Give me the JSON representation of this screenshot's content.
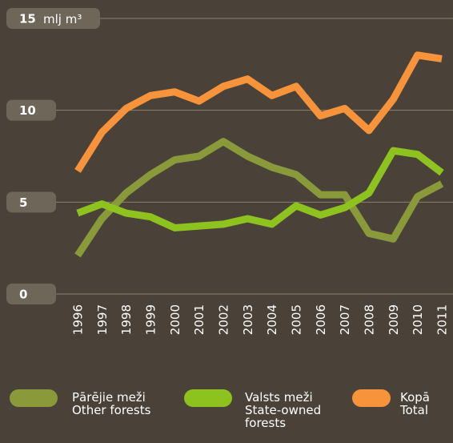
{
  "chart_data": {
    "type": "line",
    "y_unit": "mlj m³",
    "x": [
      "1996",
      "1997",
      "1998",
      "1999",
      "2000",
      "2001",
      "2002",
      "2003",
      "2004",
      "2005",
      "2006",
      "2007",
      "2008",
      "2009",
      "2010",
      "2011"
    ],
    "ylim": [
      0,
      15
    ],
    "yticks": [
      0,
      5,
      10,
      15
    ],
    "grid": true,
    "series": [
      {
        "name": "Pārējie meži\nOther forests",
        "color": "#8a9a3a",
        "values": [
          2.1,
          4.1,
          5.5,
          6.5,
          7.3,
          7.5,
          8.3,
          7.5,
          6.9,
          6.5,
          5.4,
          5.4,
          3.3,
          3.0,
          5.3,
          6.0
        ]
      },
      {
        "name": "Valsts meži\nState-owned\nforests",
        "color": "#8dc21f",
        "values": [
          4.4,
          4.9,
          4.4,
          4.2,
          3.6,
          3.7,
          3.8,
          4.1,
          3.8,
          4.8,
          4.3,
          4.7,
          5.5,
          7.8,
          7.6,
          6.6
        ]
      },
      {
        "name": "Kopā\nTotal",
        "color": "#f7933a",
        "values": [
          6.7,
          8.8,
          10.1,
          10.8,
          11.0,
          10.5,
          11.3,
          11.7,
          10.8,
          11.3,
          9.7,
          10.1,
          8.9,
          10.6,
          13.0,
          12.8
        ]
      }
    ]
  }
}
